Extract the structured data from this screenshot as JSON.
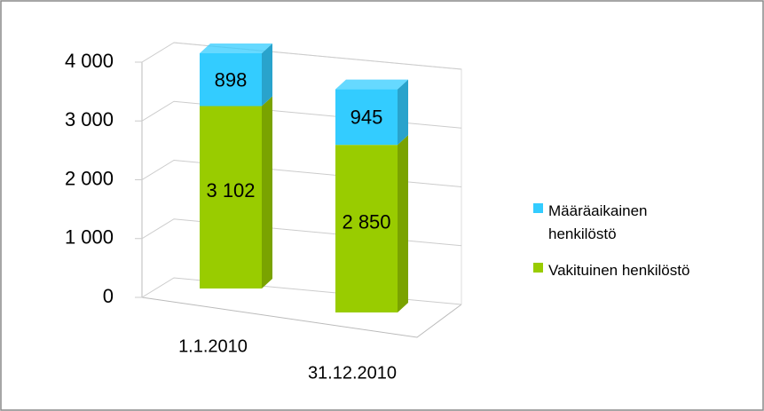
{
  "chart_data": {
    "type": "bar3d_stacked",
    "categories": [
      "1.1.2010",
      "31.12.2010"
    ],
    "series": [
      {
        "name": "Vakituinen henkilöstö",
        "color": "#99cc00",
        "values": [
          3102,
          2850
        ],
        "value_labels": [
          "3 102",
          "2 850"
        ]
      },
      {
        "name": "Määräaikainen henkilöstö",
        "color": "#33ccff",
        "values": [
          898,
          945
        ]
      }
    ],
    "ylim": [
      0,
      4000
    ],
    "yticks": [
      0,
      {
        "value": 1000,
        "label": "1 000"
      },
      {
        "value": 2000,
        "label": "2 000"
      },
      {
        "value": 3000,
        "label": "3 000"
      },
      {
        "value": 4000,
        "label": "4 000"
      }
    ],
    "grid": true,
    "legend": "right"
  }
}
